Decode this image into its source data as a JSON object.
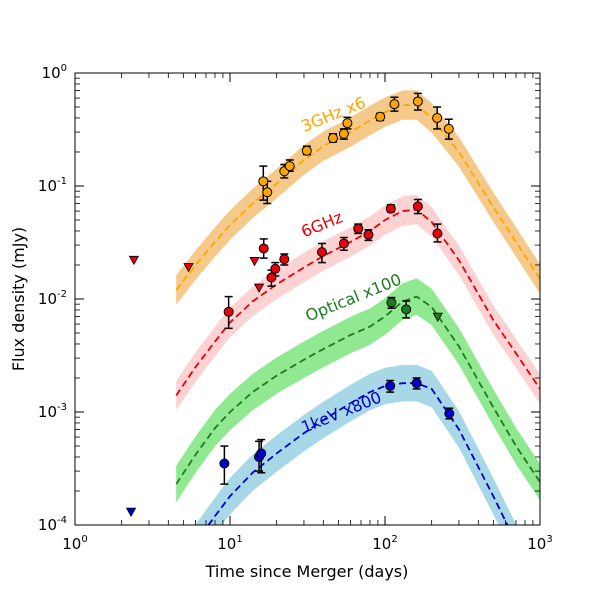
{
  "chart_data": {
    "type": "scatter",
    "title": "",
    "xlabel": "Time since Merger (days)",
    "ylabel": "Flux density (mJy)",
    "xscale": "log",
    "yscale": "log",
    "xlim": [
      1,
      1000
    ],
    "ylim": [
      0.0001,
      1
    ],
    "xticks": [
      {
        "value": 1,
        "base": "10",
        "exp": "0"
      },
      {
        "value": 10,
        "base": "10",
        "exp": "1"
      },
      {
        "value": 100,
        "base": "10",
        "exp": "2"
      },
      {
        "value": 1000,
        "base": "10",
        "exp": "3"
      }
    ],
    "yticks": [
      {
        "value": 0.0001,
        "base": "10",
        "exp": "-4"
      },
      {
        "value": 0.001,
        "base": "10",
        "exp": "-3"
      },
      {
        "value": 0.01,
        "base": "10",
        "exp": "-2"
      },
      {
        "value": 0.1,
        "base": "10",
        "exp": "-1"
      },
      {
        "value": 1,
        "base": "10",
        "exp": "0"
      }
    ],
    "grid": false,
    "legend": "none",
    "series": [
      {
        "name": "3GHz x6",
        "color": "#ffa500",
        "band_color": "#f5c98a",
        "label_at": {
          "x": 30,
          "y": 0.3
        },
        "points": [
          {
            "x": 16.4,
            "y": 0.11,
            "lo": 0.075,
            "hi": 0.15
          },
          {
            "x": 17.4,
            "y": 0.088,
            "lo": 0.07,
            "hi": 0.11
          },
          {
            "x": 22.4,
            "y": 0.135,
            "lo": 0.118,
            "hi": 0.155
          },
          {
            "x": 24.3,
            "y": 0.15,
            "lo": 0.135,
            "hi": 0.17
          },
          {
            "x": 31.3,
            "y": 0.205,
            "lo": 0.19,
            "hi": 0.225
          },
          {
            "x": 46.2,
            "y": 0.265,
            "lo": 0.245,
            "hi": 0.29
          },
          {
            "x": 54.3,
            "y": 0.29,
            "lo": 0.26,
            "hi": 0.32
          },
          {
            "x": 57.2,
            "y": 0.36,
            "lo": 0.32,
            "hi": 0.405
          },
          {
            "x": 93.1,
            "y": 0.41,
            "lo": 0.38,
            "hi": 0.44
          },
          {
            "x": 115,
            "y": 0.53,
            "lo": 0.46,
            "hi": 0.61
          },
          {
            "x": 163,
            "y": 0.56,
            "lo": 0.47,
            "hi": 0.66
          },
          {
            "x": 217,
            "y": 0.4,
            "lo": 0.32,
            "hi": 0.5
          },
          {
            "x": 258,
            "y": 0.32,
            "lo": 0.26,
            "hi": 0.39
          }
        ],
        "upper_limits": [],
        "model": [
          [
            4.5,
            0.012
          ],
          [
            6,
            0.02
          ],
          [
            8,
            0.032
          ],
          [
            10,
            0.045
          ],
          [
            14,
            0.07
          ],
          [
            20,
            0.105
          ],
          [
            30,
            0.17
          ],
          [
            40,
            0.225
          ],
          [
            60,
            0.3
          ],
          [
            80,
            0.38
          ],
          [
            100,
            0.45
          ],
          [
            130,
            0.52
          ],
          [
            160,
            0.52
          ],
          [
            200,
            0.4
          ],
          [
            300,
            0.2
          ],
          [
            500,
            0.065
          ],
          [
            700,
            0.032
          ],
          [
            1000,
            0.015
          ]
        ],
        "band_factor": 1.35
      },
      {
        "name": "6GHz",
        "color": "#e8000b",
        "band_color": "#fcd2d2",
        "label_at": {
          "x": 30,
          "y": 0.035
        },
        "points": [
          {
            "x": 9.8,
            "y": 0.0077,
            "lo": 0.0055,
            "hi": 0.0105
          },
          {
            "x": 16.5,
            "y": 0.028,
            "lo": 0.023,
            "hi": 0.034
          },
          {
            "x": 18.5,
            "y": 0.0155,
            "lo": 0.013,
            "hi": 0.018
          },
          {
            "x": 19.6,
            "y": 0.0185,
            "lo": 0.016,
            "hi": 0.021
          },
          {
            "x": 22.4,
            "y": 0.0225,
            "lo": 0.02,
            "hi": 0.025
          },
          {
            "x": 39.2,
            "y": 0.026,
            "lo": 0.021,
            "hi": 0.031
          },
          {
            "x": 54.3,
            "y": 0.031,
            "lo": 0.027,
            "hi": 0.035
          },
          {
            "x": 67.2,
            "y": 0.042,
            "lo": 0.038,
            "hi": 0.046
          },
          {
            "x": 78.2,
            "y": 0.037,
            "lo": 0.033,
            "hi": 0.041
          },
          {
            "x": 109,
            "y": 0.063,
            "lo": 0.059,
            "hi": 0.068
          },
          {
            "x": 163,
            "y": 0.066,
            "lo": 0.057,
            "hi": 0.076
          },
          {
            "x": 218,
            "y": 0.038,
            "lo": 0.032,
            "hi": 0.046
          }
        ],
        "upper_limits": [
          {
            "x": 2.4,
            "y": 0.022
          },
          {
            "x": 5.4,
            "y": 0.019
          },
          {
            "x": 14.4,
            "y": 0.0215
          },
          {
            "x": 15.4,
            "y": 0.0125
          }
        ],
        "model": [
          [
            4.5,
            0.0014
          ],
          [
            6,
            0.0025
          ],
          [
            8,
            0.0042
          ],
          [
            10,
            0.0062
          ],
          [
            14,
            0.0095
          ],
          [
            20,
            0.0135
          ],
          [
            30,
            0.019
          ],
          [
            40,
            0.024
          ],
          [
            60,
            0.032
          ],
          [
            80,
            0.04
          ],
          [
            100,
            0.05
          ],
          [
            130,
            0.06
          ],
          [
            160,
            0.062
          ],
          [
            200,
            0.048
          ],
          [
            300,
            0.022
          ],
          [
            500,
            0.0065
          ],
          [
            700,
            0.0033
          ],
          [
            1000,
            0.0016
          ]
        ],
        "band_factor": 1.35
      },
      {
        "name": "Optical x100",
        "color": "#1b7d1b",
        "band_color": "#90e890",
        "label_at": {
          "x": 32,
          "y": 0.0063
        },
        "points": [
          {
            "x": 110,
            "y": 0.0093,
            "lo": 0.0083,
            "hi": 0.0103
          },
          {
            "x": 137,
            "y": 0.0081,
            "lo": 0.0068,
            "hi": 0.0096
          }
        ],
        "upper_limits": [
          {
            "x": 219,
            "y": 0.0069
          }
        ],
        "model": [
          [
            4.5,
            0.00023
          ],
          [
            6,
            0.00042
          ],
          [
            8,
            0.00072
          ],
          [
            10,
            0.001
          ],
          [
            14,
            0.0015
          ],
          [
            20,
            0.0021
          ],
          [
            30,
            0.0029
          ],
          [
            40,
            0.0036
          ],
          [
            60,
            0.0048
          ],
          [
            80,
            0.0057
          ],
          [
            100,
            0.007
          ],
          [
            130,
            0.0095
          ],
          [
            160,
            0.0105
          ],
          [
            200,
            0.0085
          ],
          [
            300,
            0.0038
          ],
          [
            500,
            0.0011
          ],
          [
            700,
            0.0005
          ],
          [
            1000,
            0.00024
          ]
        ],
        "band_factor": 1.45
      },
      {
        "name": "1keV x800",
        "color": "#0000cc",
        "band_color": "#a8d8e8",
        "label_at": {
          "x": 30,
          "y": 0.00065
        },
        "points": [
          {
            "x": 9.2,
            "y": 0.00035,
            "lo": 0.00023,
            "hi": 0.0005
          },
          {
            "x": 15.4,
            "y": 0.0004,
            "lo": 0.0003,
            "hi": 0.00055
          },
          {
            "x": 15.9,
            "y": 0.00043,
            "lo": 0.00029,
            "hi": 0.00057
          },
          {
            "x": 108,
            "y": 0.0017,
            "lo": 0.0015,
            "hi": 0.0019
          },
          {
            "x": 160,
            "y": 0.0018,
            "lo": 0.0016,
            "hi": 0.002
          },
          {
            "x": 260,
            "y": 0.00097,
            "lo": 0.00087,
            "hi": 0.00108
          }
        ],
        "upper_limits": [
          {
            "x": 2.3,
            "y": 0.00013
          }
        ],
        "model": [
          [
            4.5,
            4e-05
          ],
          [
            6,
            7e-05
          ],
          [
            8,
            0.00012
          ],
          [
            10,
            0.00018
          ],
          [
            14,
            0.00029
          ],
          [
            20,
            0.00043
          ],
          [
            30,
            0.00065
          ],
          [
            40,
            0.00085
          ],
          [
            60,
            0.0012
          ],
          [
            80,
            0.0015
          ],
          [
            100,
            0.0017
          ],
          [
            130,
            0.0018
          ],
          [
            160,
            0.0018
          ],
          [
            200,
            0.0016
          ],
          [
            300,
            0.0007
          ],
          [
            500,
            0.00018
          ],
          [
            700,
            7e-05
          ],
          [
            1000,
            3e-05
          ]
        ],
        "band_factor": 1.45
      }
    ]
  }
}
